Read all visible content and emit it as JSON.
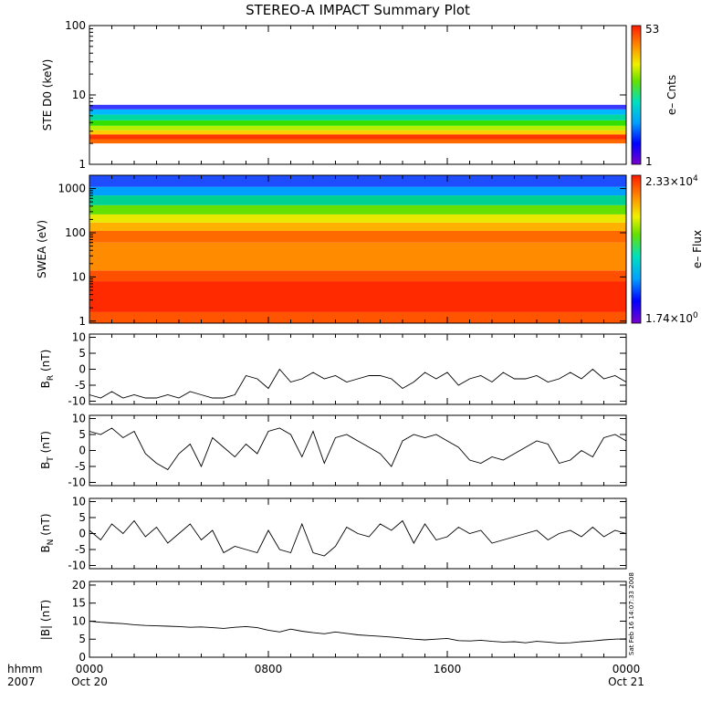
{
  "chart_data": [
    {
      "id": "ste",
      "type": "heatmap",
      "title": "STEREO-A IMPACT Summary Plot",
      "ylabel": "STE D0 (keV)",
      "yscale": "log",
      "ylim": [
        1,
        100
      ],
      "yticks": [
        {
          "v": 1,
          "label": "1"
        },
        {
          "v": 10,
          "label": "10"
        },
        {
          "v": 100,
          "label": "100"
        }
      ],
      "colorbar": {
        "max_label": "53",
        "min_label": "1",
        "label": "e– Cnts"
      },
      "bands": [
        {
          "y0": 2.0,
          "y1": 2.3,
          "color": "#ff6a00"
        },
        {
          "y0": 2.3,
          "y1": 2.7,
          "color": "#ff3300"
        },
        {
          "y0": 2.7,
          "y1": 3.1,
          "color": "#ffcc00"
        },
        {
          "y0": 3.1,
          "y1": 3.6,
          "color": "#b5f000"
        },
        {
          "y0": 3.6,
          "y1": 4.3,
          "color": "#33e000"
        },
        {
          "y0": 4.3,
          "y1": 5.2,
          "color": "#00d8a0"
        },
        {
          "y0": 5.2,
          "y1": 6.2,
          "color": "#00b8ff"
        },
        {
          "y0": 6.2,
          "y1": 7.2,
          "color": "#3a3aff"
        }
      ]
    },
    {
      "id": "swea",
      "type": "heatmap",
      "ylabel": "SWEA (eV)",
      "yscale": "log",
      "ylim": [
        0.9,
        2000
      ],
      "yticks": [
        {
          "v": 1,
          "label": "1"
        },
        {
          "v": 10,
          "label": "10"
        },
        {
          "v": 100,
          "label": "100"
        },
        {
          "v": 1000,
          "label": "1000"
        }
      ],
      "colorbar": {
        "max_mant": "2.33×10",
        "max_exp": "4",
        "min_mant": "1.74×10",
        "min_exp": "0",
        "label": "e– Flux"
      },
      "bands": [
        {
          "y0": 0.9,
          "y1": 1.6,
          "color": "#ff5500"
        },
        {
          "y0": 1.6,
          "y1": 8,
          "color": "#ff2a00"
        },
        {
          "y0": 8,
          "y1": 14,
          "color": "#ff5000"
        },
        {
          "y0": 14,
          "y1": 60,
          "color": "#ff8c00"
        },
        {
          "y0": 60,
          "y1": 110,
          "color": "#ff6a00"
        },
        {
          "y0": 110,
          "y1": 170,
          "color": "#ffb000"
        },
        {
          "y0": 170,
          "y1": 260,
          "color": "#e8e800"
        },
        {
          "y0": 260,
          "y1": 420,
          "color": "#66e000"
        },
        {
          "y0": 420,
          "y1": 700,
          "color": "#00d090"
        },
        {
          "y0": 700,
          "y1": 1100,
          "color": "#00a0ff"
        },
        {
          "y0": 1100,
          "y1": 2000,
          "color": "#1e4cff"
        }
      ]
    },
    {
      "id": "br",
      "type": "line",
      "ylabel": "B",
      "ysub": "R",
      "yunit": " (nT)",
      "ylim": [
        -11,
        11
      ],
      "yticks": [
        -10,
        -5,
        0,
        5,
        10
      ],
      "x": [
        0,
        0.5,
        1,
        1.5,
        2,
        2.5,
        3,
        3.5,
        4,
        4.5,
        5,
        5.5,
        6,
        6.5,
        7,
        7.5,
        8,
        8.5,
        9,
        9.5,
        10,
        10.5,
        11,
        11.5,
        12,
        12.5,
        13,
        13.5,
        14,
        14.5,
        15,
        15.5,
        16,
        16.5,
        17,
        17.5,
        18,
        18.5,
        19,
        19.5,
        20,
        20.5,
        21,
        21.5,
        22,
        22.5,
        23,
        23.5,
        24
      ],
      "y": [
        -8,
        -9,
        -7,
        -9,
        -8,
        -9,
        -9,
        -8,
        -9,
        -7,
        -8,
        -9,
        -9,
        -8,
        -2,
        -3,
        -6,
        0,
        -4,
        -3,
        -1,
        -3,
        -2,
        -4,
        -3,
        -2,
        -2,
        -3,
        -6,
        -4,
        -1,
        -3,
        -1,
        -5,
        -3,
        -2,
        -4,
        -1,
        -3,
        -3,
        -2,
        -4,
        -3,
        -1,
        -3,
        0,
        -3,
        -2,
        -4
      ]
    },
    {
      "id": "bt",
      "type": "line",
      "ylabel": "B",
      "ysub": "T",
      "yunit": " (nT)",
      "ylim": [
        -11,
        11
      ],
      "yticks": [
        -10,
        -5,
        0,
        5,
        10
      ],
      "x": [
        0,
        0.5,
        1,
        1.5,
        2,
        2.5,
        3,
        3.5,
        4,
        4.5,
        5,
        5.5,
        6,
        6.5,
        7,
        7.5,
        8,
        8.5,
        9,
        9.5,
        10,
        10.5,
        11,
        11.5,
        12,
        12.5,
        13,
        13.5,
        14,
        14.5,
        15,
        15.5,
        16,
        16.5,
        17,
        17.5,
        18,
        18.5,
        19,
        19.5,
        20,
        20.5,
        21,
        21.5,
        22,
        22.5,
        23,
        23.5,
        24
      ],
      "y": [
        6,
        5,
        7,
        4,
        6,
        -1,
        -4,
        -6,
        -1,
        2,
        -5,
        4,
        1,
        -2,
        2,
        -1,
        6,
        7,
        5,
        -2,
        6,
        -4,
        4,
        5,
        3,
        1,
        -1,
        -5,
        3,
        5,
        4,
        5,
        3,
        1,
        -3,
        -4,
        -2,
        -3,
        -1,
        1,
        3,
        2,
        -4,
        -3,
        0,
        -2,
        4,
        5,
        3
      ]
    },
    {
      "id": "bn",
      "type": "line",
      "ylabel": "B",
      "ysub": "N",
      "yunit": " (nT)",
      "ylim": [
        -11,
        11
      ],
      "yticks": [
        -10,
        -5,
        0,
        5,
        10
      ],
      "x": [
        0,
        0.5,
        1,
        1.5,
        2,
        2.5,
        3,
        3.5,
        4,
        4.5,
        5,
        5.5,
        6,
        6.5,
        7,
        7.5,
        8,
        8.5,
        9,
        9.5,
        10,
        10.5,
        11,
        11.5,
        12,
        12.5,
        13,
        13.5,
        14,
        14.5,
        15,
        15.5,
        16,
        16.5,
        17,
        17.5,
        18,
        18.5,
        19,
        19.5,
        20,
        20.5,
        21,
        21.5,
        22,
        22.5,
        23,
        23.5,
        24
      ],
      "y": [
        1,
        -2,
        3,
        0,
        4,
        -1,
        2,
        -3,
        0,
        3,
        -2,
        1,
        -6,
        -4,
        -5,
        -6,
        1,
        -5,
        -6,
        3,
        -6,
        -7,
        -4,
        2,
        0,
        -1,
        3,
        1,
        4,
        -3,
        3,
        -2,
        -1,
        2,
        0,
        1,
        -3,
        -2,
        -1,
        0,
        1,
        -2,
        0,
        1,
        -1,
        2,
        -1,
        1,
        0
      ]
    },
    {
      "id": "bmag",
      "type": "line",
      "ylabel": "|B| (nT)",
      "ylim": [
        0,
        21
      ],
      "yticks": [
        0,
        5,
        10,
        15,
        20
      ],
      "x": [
        0,
        0.5,
        1,
        1.5,
        2,
        2.5,
        3,
        3.5,
        4,
        4.5,
        5,
        5.5,
        6,
        6.5,
        7,
        7.5,
        8,
        8.5,
        9,
        9.5,
        10,
        10.5,
        11,
        11.5,
        12,
        12.5,
        13,
        13.5,
        14,
        14.5,
        15,
        15.5,
        16,
        16.5,
        17,
        17.5,
        18,
        18.5,
        19,
        19.5,
        20,
        20.5,
        21,
        21.5,
        22,
        22.5,
        23,
        23.5,
        24
      ],
      "y": [
        10,
        9.7,
        9.5,
        9.3,
        9,
        8.8,
        8.7,
        8.6,
        8.5,
        8.3,
        8.4,
        8.2,
        8,
        8.3,
        8.5,
        8.2,
        7.5,
        7,
        7.8,
        7.2,
        6.8,
        6.5,
        7,
        6.6,
        6.2,
        6,
        5.8,
        5.6,
        5.3,
        5,
        4.8,
        5,
        5.2,
        4.6,
        4.5,
        4.7,
        4.4,
        4.2,
        4.3,
        4,
        4.4,
        4.2,
        3.9,
        4,
        4.3,
        4.5,
        4.8,
        5,
        5.1
      ]
    }
  ],
  "xaxis": {
    "title_top": "hhmm",
    "title_bottom": "2007",
    "ticks": [
      {
        "v": 0,
        "top": "0000",
        "bottom": "Oct 20"
      },
      {
        "v": 8,
        "top": "0800",
        "bottom": ""
      },
      {
        "v": 16,
        "top": "1600",
        "bottom": ""
      },
      {
        "v": 24,
        "top": "0000",
        "bottom": "Oct 21"
      }
    ]
  },
  "timestamp": "Sat Feb 16 14:07:33 2008"
}
